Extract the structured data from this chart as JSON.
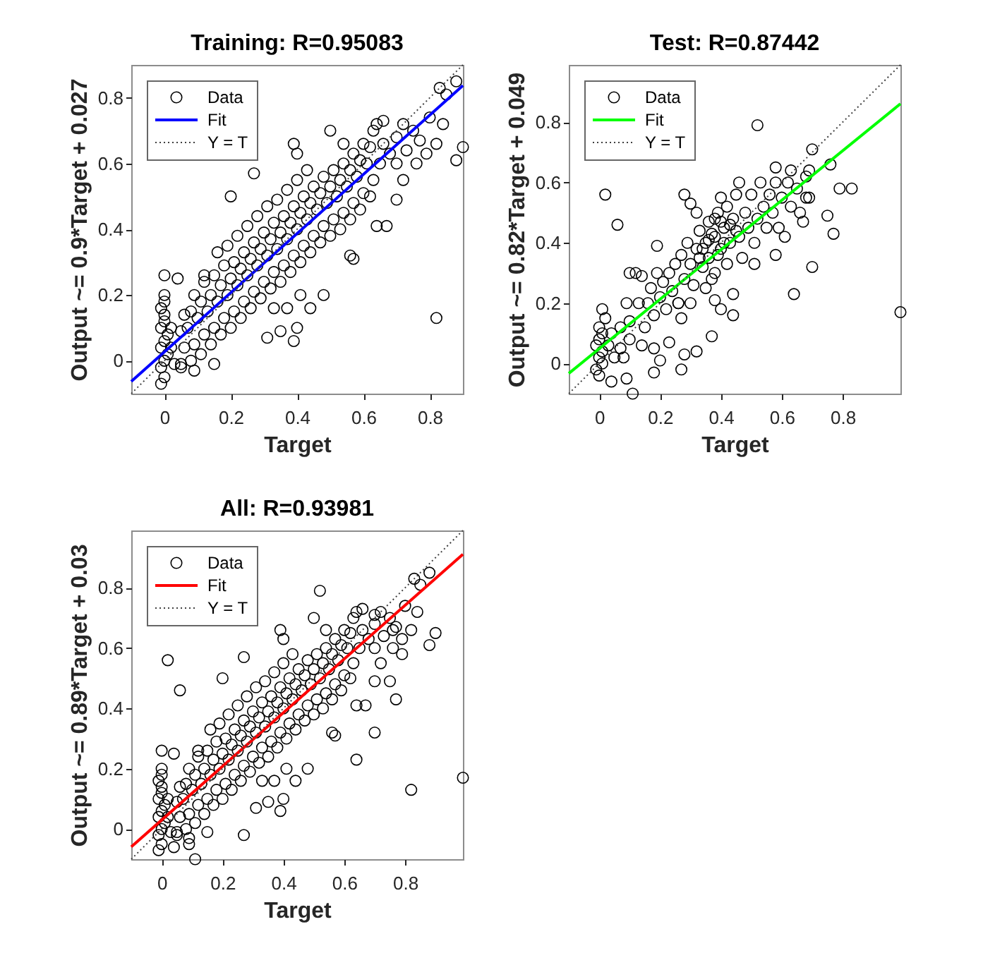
{
  "chart_data": [
    {
      "type": "scatter",
      "title": "Training: R=0.95083",
      "xlabel": "Target",
      "ylabel": "Output ~= 0.9*Target + 0.027",
      "xlim": [
        -0.1,
        0.9
      ],
      "ylim": [
        -0.1,
        0.9
      ],
      "xticks": [
        0,
        0.2,
        0.4,
        0.6,
        0.8
      ],
      "yticks": [
        0,
        0.2,
        0.4,
        0.6,
        0.8
      ],
      "grid": false,
      "legend": "top left",
      "series": [
        {
          "name": "Data",
          "color": "#000000",
          "marker": "circle",
          "x": [
            -0.01,
            0,
            -0.01,
            0,
            0.01,
            -0.01,
            0,
            0.01,
            -0.01,
            0,
            0,
            -0.01,
            0,
            0,
            0,
            0.04,
            0.02,
            0.02,
            0.03,
            0.05,
            0.06,
            0.05,
            0.06,
            0.08,
            0.09,
            0.07,
            0.08,
            0.09,
            0.11,
            0.12,
            0.1,
            0.11,
            0.12,
            0.14,
            0.15,
            0.13,
            0.14,
            0.15,
            0.17,
            0.18,
            0.16,
            0.17,
            0.18,
            0.2,
            0.21,
            0.19,
            0.2,
            0.21,
            0.19,
            0.23,
            0.24,
            0.22,
            0.23,
            0.24,
            0.22,
            0.26,
            0.27,
            0.25,
            0.26,
            0.27,
            0.25,
            0.29,
            0.3,
            0.28,
            0.29,
            0.3,
            0.28,
            0.32,
            0.33,
            0.31,
            0.32,
            0.33,
            0.31,
            0.35,
            0.36,
            0.34,
            0.35,
            0.36,
            0.34,
            0.38,
            0.39,
            0.37,
            0.38,
            0.39,
            0.37,
            0.41,
            0.42,
            0.4,
            0.41,
            0.42,
            0.4,
            0.44,
            0.45,
            0.43,
            0.44,
            0.45,
            0.43,
            0.47,
            0.48,
            0.46,
            0.47,
            0.48,
            0.5,
            0.51,
            0.49,
            0.5,
            0.51,
            0.53,
            0.54,
            0.52,
            0.53,
            0.54,
            0.56,
            0.57,
            0.55,
            0.56,
            0.57,
            0.59,
            0.6,
            0.58,
            0.59,
            0.6,
            0.62,
            0.63,
            0.61,
            0.62,
            0.63,
            0.65,
            0.66,
            0.68,
            0.7,
            0.7,
            0.72,
            0.73,
            0.75,
            0.76,
            0.77,
            0.79,
            0.8,
            0.82,
            0.83,
            0.85,
            0.88,
            0.9,
            0.88,
            0.84,
            0.72,
            0.7,
            0.67,
            0.64,
            0.64,
            0.66,
            0.31,
            0.35,
            0.39,
            0.4,
            0.44,
            0.48,
            0.41,
            0.37,
            0.33,
            0.57,
            0.56,
            0.82,
            0.15,
            0.09,
            0.05,
            0.2,
            0.27,
            0.39,
            0.4,
            0.5,
            0.54,
            0.12,
            0.16
          ],
          "values": [
            -0.07,
            -0.05,
            -0.02,
            0,
            0.02,
            0.04,
            0.06,
            0.08,
            0.1,
            0.12,
            0.14,
            0.16,
            0.18,
            0.2,
            0.26,
            0.25,
            0.1,
            0.04,
            -0.01,
            -0.01,
            0.04,
            0.09,
            0.14,
            0,
            0.05,
            0.1,
            0.15,
            0.2,
            0.02,
            0.08,
            0.13,
            0.18,
            0.24,
            0.05,
            0.1,
            0.15,
            0.2,
            0.26,
            0.08,
            0.13,
            0.18,
            0.23,
            0.29,
            0.1,
            0.15,
            0.2,
            0.25,
            0.3,
            0.35,
            0.13,
            0.18,
            0.23,
            0.28,
            0.33,
            0.38,
            0.16,
            0.21,
            0.26,
            0.31,
            0.36,
            0.41,
            0.19,
            0.24,
            0.29,
            0.34,
            0.39,
            0.44,
            0.22,
            0.27,
            0.32,
            0.37,
            0.42,
            0.47,
            0.24,
            0.29,
            0.34,
            0.39,
            0.44,
            0.49,
            0.27,
            0.32,
            0.37,
            0.42,
            0.47,
            0.52,
            0.3,
            0.35,
            0.4,
            0.45,
            0.5,
            0.55,
            0.33,
            0.38,
            0.43,
            0.48,
            0.53,
            0.58,
            0.36,
            0.41,
            0.46,
            0.51,
            0.56,
            0.38,
            0.43,
            0.48,
            0.53,
            0.58,
            0.4,
            0.45,
            0.5,
            0.55,
            0.6,
            0.43,
            0.48,
            0.53,
            0.58,
            0.63,
            0.46,
            0.51,
            0.56,
            0.61,
            0.66,
            0.5,
            0.55,
            0.6,
            0.65,
            0.7,
            0.6,
            0.66,
            0.63,
            0.6,
            0.68,
            0.72,
            0.64,
            0.7,
            0.6,
            0.67,
            0.63,
            0.74,
            0.66,
            0.83,
            0.81,
            0.85,
            0.65,
            0.61,
            0.72,
            0.55,
            0.49,
            0.41,
            0.41,
            0.72,
            0.73,
            0.07,
            0.09,
            0.06,
            0.1,
            0.16,
            0.2,
            0.2,
            0.16,
            0.16,
            0.31,
            0.32,
            0.13,
            -0.01,
            -0.03,
            -0.02,
            0.5,
            0.57,
            0.66,
            0.63,
            0.7,
            0.66,
            0.26,
            0.33
          ]
        },
        {
          "name": "Fit",
          "type": "line",
          "color": "#0000ff",
          "line_style": "solid",
          "x": [
            -0.1,
            0.9
          ],
          "values": [
            -0.063,
            0.837
          ]
        },
        {
          "name": "Y = T",
          "type": "line",
          "color": "#404040",
          "line_style": "dotted",
          "x": [
            -0.1,
            0.9
          ],
          "values": [
            -0.1,
            0.9
          ]
        }
      ]
    },
    {
      "type": "scatter",
      "title": "Test: R=0.87442",
      "xlabel": "Target",
      "ylabel": "Output ~= 0.82*Target + 0.049",
      "xlim": [
        -0.1,
        0.99
      ],
      "ylim": [
        -0.1,
        0.99
      ],
      "xticks": [
        0,
        0.2,
        0.4,
        0.6,
        0.8
      ],
      "yticks": [
        0,
        0.2,
        0.4,
        0.6,
        0.8
      ],
      "grid": false,
      "legend": "top left",
      "series": [
        {
          "name": "Data",
          "color": "#000000",
          "marker": "circle",
          "x": [
            0,
            -0.01,
            0.01,
            0,
            0.01,
            -0.01,
            0,
            0.01,
            0,
            0.02,
            0.04,
            0.03,
            0.05,
            0.07,
            0.07,
            0.08,
            0.1,
            0.02,
            0.06,
            0.52,
            0.99,
            0.64,
            0.7,
            0.7,
            0.76,
            0.79,
            0.83,
            0.75,
            0.77,
            0.11,
            0.04,
            0.09,
            0.27,
            0.28,
            0.32,
            0.37,
            0.18,
            0.23,
            0.2,
            0.18,
            0.14,
            0.28,
            0.3,
            0.19,
            0.51,
            0.58,
            0.61,
            0.67,
            0.68,
            0.58,
            0.63,
            0.69,
            0.44,
            0.44,
            0.4,
            0.38,
            0.27,
            0.26,
            0.09,
            0.01,
            0.1,
            0.1,
            0.12,
            0.14,
            0.13,
            0.15,
            0.16,
            0.17,
            0.18,
            0.19,
            0.2,
            0.21,
            0.22,
            0.23,
            0.24,
            0.25,
            0.26,
            0.27,
            0.28,
            0.29,
            0.3,
            0.31,
            0.32,
            0.33,
            0.34,
            0.35,
            0.36,
            0.36,
            0.37,
            0.38,
            0.39,
            0.4,
            0.41,
            0.42,
            0.42,
            0.43,
            0.44,
            0.45,
            0.46,
            0.47,
            0.48,
            0.49,
            0.5,
            0.51,
            0.52,
            0.53,
            0.54,
            0.55,
            0.56,
            0.57,
            0.58,
            0.59,
            0.6,
            0.62,
            0.63,
            0.65,
            0.66,
            0.68,
            0.69,
            0.38,
            0.35,
            0.3,
            0.32,
            0.46,
            0.4,
            0.34,
            0.37,
            0.39,
            0.41,
            0.43,
            0.45,
            0.36,
            0.4,
            0.33,
            0.38
          ],
          "values": [
            -0.04,
            -0.02,
            0,
            0.02,
            0.04,
            0.06,
            0.08,
            0.1,
            0.12,
            0.15,
            0.1,
            0.06,
            0.02,
            0.05,
            0.12,
            0.02,
            0.14,
            0.56,
            0.46,
            0.79,
            0.17,
            0.23,
            0.32,
            0.71,
            0.66,
            0.58,
            0.58,
            0.49,
            0.43,
            -0.1,
            -0.06,
            -0.05,
            -0.02,
            0.03,
            0.04,
            0.09,
            0.05,
            0.07,
            0.01,
            -0.03,
            0.06,
            0.56,
            0.53,
            0.39,
            0.33,
            0.36,
            0.42,
            0.47,
            0.55,
            0.65,
            0.64,
            0.64,
            0.16,
            0.23,
            0.18,
            0.21,
            0.15,
            0.2,
            0.2,
            0.18,
            0.08,
            0.3,
            0.3,
            0.29,
            0.2,
            0.12,
            0.2,
            0.25,
            0.16,
            0.3,
            0.22,
            0.27,
            0.18,
            0.3,
            0.24,
            0.33,
            0.2,
            0.36,
            0.28,
            0.4,
            0.33,
            0.26,
            0.38,
            0.44,
            0.32,
            0.4,
            0.47,
            0.35,
            0.28,
            0.42,
            0.5,
            0.38,
            0.45,
            0.52,
            0.33,
            0.4,
            0.48,
            0.56,
            0.42,
            0.35,
            0.5,
            0.45,
            0.56,
            0.4,
            0.48,
            0.6,
            0.52,
            0.45,
            0.56,
            0.5,
            0.6,
            0.45,
            0.55,
            0.6,
            0.52,
            0.58,
            0.5,
            0.62,
            0.55,
            0.3,
            0.25,
            0.2,
            0.5,
            0.6,
            0.55,
            0.38,
            0.43,
            0.36,
            0.4,
            0.46,
            0.44,
            0.41,
            0.47,
            0.35,
            0.48
          ]
        },
        {
          "name": "Fit",
          "type": "line",
          "color": "#00ff00",
          "line_style": "solid",
          "x": [
            -0.1,
            0.99
          ],
          "values": [
            -0.033,
            0.861
          ]
        },
        {
          "name": "Y = T",
          "type": "line",
          "color": "#404040",
          "line_style": "dotted",
          "x": [
            -0.1,
            0.99
          ],
          "values": [
            -0.1,
            0.99
          ]
        }
      ]
    },
    {
      "type": "scatter",
      "title": "All: R=0.93981",
      "xlabel": "Target",
      "ylabel": "Output ~= 0.89*Target + 0.03",
      "xlim": [
        -0.1,
        0.99
      ],
      "ylim": [
        -0.1,
        0.99
      ],
      "xticks": [
        0,
        0.2,
        0.4,
        0.6,
        0.8
      ],
      "yticks": [
        0,
        0.2,
        0.4,
        0.6,
        0.8
      ],
      "grid": false,
      "legend": "top left",
      "series": [
        {
          "name": "Data",
          "color": "#000000",
          "marker": "circle",
          "x": [
            -0.01,
            0,
            -0.01,
            0,
            0.01,
            -0.01,
            0,
            0.01,
            -0.01,
            0,
            0,
            -0.01,
            0,
            0,
            0,
            0.04,
            0.02,
            0.02,
            0.03,
            0.05,
            0.06,
            0.05,
            0.06,
            0.08,
            0.09,
            0.07,
            0.08,
            0.09,
            0.11,
            0.12,
            0.1,
            0.11,
            0.12,
            0.14,
            0.15,
            0.13,
            0.14,
            0.15,
            0.17,
            0.18,
            0.16,
            0.17,
            0.18,
            0.2,
            0.21,
            0.19,
            0.2,
            0.21,
            0.19,
            0.23,
            0.24,
            0.22,
            0.23,
            0.24,
            0.22,
            0.26,
            0.27,
            0.25,
            0.26,
            0.27,
            0.25,
            0.29,
            0.3,
            0.28,
            0.29,
            0.3,
            0.28,
            0.32,
            0.33,
            0.31,
            0.32,
            0.33,
            0.31,
            0.35,
            0.36,
            0.34,
            0.35,
            0.36,
            0.34,
            0.38,
            0.39,
            0.37,
            0.38,
            0.39,
            0.37,
            0.41,
            0.42,
            0.4,
            0.41,
            0.42,
            0.4,
            0.44,
            0.45,
            0.43,
            0.44,
            0.45,
            0.43,
            0.47,
            0.48,
            0.46,
            0.47,
            0.48,
            0.5,
            0.51,
            0.49,
            0.5,
            0.51,
            0.53,
            0.54,
            0.52,
            0.53,
            0.54,
            0.56,
            0.57,
            0.55,
            0.56,
            0.57,
            0.59,
            0.6,
            0.58,
            0.59,
            0.6,
            0.62,
            0.63,
            0.61,
            0.62,
            0.63,
            0.65,
            0.66,
            0.68,
            0.7,
            0.7,
            0.72,
            0.73,
            0.75,
            0.76,
            0.77,
            0.79,
            0.8,
            0.82,
            0.83,
            0.85,
            0.88,
            0.9,
            0.88,
            0.84,
            0.72,
            0.7,
            0.67,
            0.64,
            0.64,
            0.66,
            0.31,
            0.35,
            0.39,
            0.4,
            0.44,
            0.48,
            0.41,
            0.37,
            0.33,
            0.57,
            0.56,
            0.82,
            0.15,
            0.09,
            0.05,
            0.2,
            0.27,
            0.39,
            0.4,
            0.5,
            0.54,
            0.12,
            0.16,
            0.02,
            0.06,
            0.52,
            0.99,
            0.64,
            0.7,
            0.11,
            0.77,
            0.75,
            0.27,
            0.04,
            0.09,
            0.7,
            0.76,
            0.79
          ],
          "values": [
            -0.07,
            -0.05,
            -0.02,
            0,
            0.02,
            0.04,
            0.06,
            0.08,
            0.1,
            0.12,
            0.14,
            0.16,
            0.18,
            0.2,
            0.26,
            0.25,
            0.1,
            0.04,
            -0.01,
            -0.01,
            0.04,
            0.09,
            0.14,
            0,
            0.05,
            0.1,
            0.15,
            0.2,
            0.02,
            0.08,
            0.13,
            0.18,
            0.24,
            0.05,
            0.1,
            0.15,
            0.2,
            0.26,
            0.08,
            0.13,
            0.18,
            0.23,
            0.29,
            0.1,
            0.15,
            0.2,
            0.25,
            0.3,
            0.35,
            0.13,
            0.18,
            0.23,
            0.28,
            0.33,
            0.38,
            0.16,
            0.21,
            0.26,
            0.31,
            0.36,
            0.41,
            0.19,
            0.24,
            0.29,
            0.34,
            0.39,
            0.44,
            0.22,
            0.27,
            0.32,
            0.37,
            0.42,
            0.47,
            0.24,
            0.29,
            0.34,
            0.39,
            0.44,
            0.49,
            0.27,
            0.32,
            0.37,
            0.42,
            0.47,
            0.52,
            0.3,
            0.35,
            0.4,
            0.45,
            0.5,
            0.55,
            0.33,
            0.38,
            0.43,
            0.48,
            0.53,
            0.58,
            0.36,
            0.41,
            0.46,
            0.51,
            0.56,
            0.38,
            0.43,
            0.48,
            0.53,
            0.58,
            0.4,
            0.45,
            0.5,
            0.55,
            0.6,
            0.43,
            0.48,
            0.53,
            0.58,
            0.63,
            0.46,
            0.51,
            0.56,
            0.61,
            0.66,
            0.5,
            0.55,
            0.6,
            0.65,
            0.7,
            0.6,
            0.66,
            0.63,
            0.6,
            0.68,
            0.72,
            0.64,
            0.7,
            0.6,
            0.67,
            0.63,
            0.74,
            0.66,
            0.83,
            0.81,
            0.85,
            0.65,
            0.61,
            0.72,
            0.55,
            0.49,
            0.41,
            0.41,
            0.72,
            0.73,
            0.07,
            0.09,
            0.06,
            0.1,
            0.16,
            0.2,
            0.2,
            0.16,
            0.16,
            0.31,
            0.32,
            0.13,
            -0.01,
            -0.03,
            -0.02,
            0.5,
            0.57,
            0.66,
            0.63,
            0.7,
            0.66,
            0.26,
            0.33,
            0.56,
            0.46,
            0.79,
            0.17,
            0.23,
            0.32,
            -0.1,
            0.43,
            0.49,
            -0.02,
            -0.06,
            -0.05,
            0.71,
            0.66,
            0.58
          ]
        },
        {
          "name": "Fit",
          "type": "line",
          "color": "#ff0000",
          "line_style": "solid",
          "x": [
            -0.1,
            0.99
          ],
          "values": [
            -0.059,
            0.911
          ]
        },
        {
          "name": "Y = T",
          "type": "line",
          "color": "#404040",
          "line_style": "dotted",
          "x": [
            -0.1,
            0.99
          ],
          "values": [
            -0.1,
            0.99
          ]
        }
      ]
    }
  ]
}
